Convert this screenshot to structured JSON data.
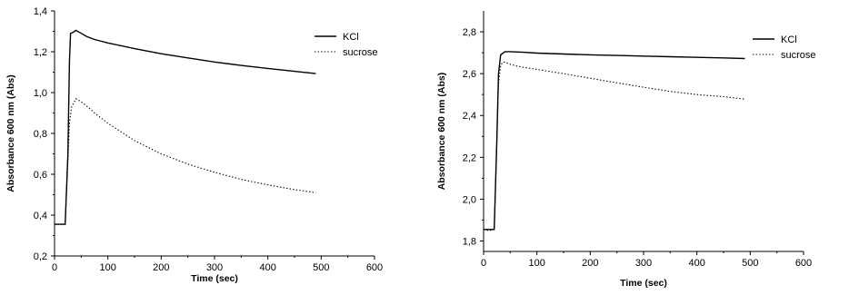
{
  "chart_data": [
    {
      "type": "line",
      "xlabel": "Time (sec)",
      "ylabel": "Absorbance 600 nm (Abs)",
      "xlim": [
        0,
        600
      ],
      "ylim": [
        0.2,
        1.4
      ],
      "xticks": [
        0,
        100,
        200,
        300,
        400,
        500,
        600
      ],
      "xtick_labels": [
        "0",
        "100",
        "200",
        "300",
        "400",
        "500",
        "600"
      ],
      "yticks": [
        0.2,
        0.4,
        0.6,
        0.8,
        1.0,
        1.2,
        1.4
      ],
      "ytick_labels": [
        "0,2",
        "0,4",
        "0,6",
        "0,8",
        "1,0",
        "1,2",
        "1,4"
      ],
      "grid": false,
      "legend_position": "top-right",
      "series": [
        {
          "name": "KCl",
          "style": "solid",
          "x": [
            0,
            10,
            20,
            25,
            28,
            30,
            35,
            40,
            50,
            60,
            75,
            100,
            150,
            200,
            250,
            300,
            350,
            400,
            450,
            490
          ],
          "y": [
            0.355,
            0.355,
            0.355,
            0.7,
            1.15,
            1.29,
            1.295,
            1.305,
            1.29,
            1.275,
            1.26,
            1.243,
            1.215,
            1.19,
            1.17,
            1.15,
            1.133,
            1.118,
            1.104,
            1.093
          ]
        },
        {
          "name": "sucrose",
          "style": "dotted",
          "x": [
            0,
            10,
            20,
            24,
            28,
            32,
            36,
            40,
            50,
            60,
            75,
            100,
            150,
            200,
            250,
            300,
            350,
            400,
            450,
            490
          ],
          "y": [
            0.355,
            0.355,
            0.355,
            0.6,
            0.85,
            0.93,
            0.95,
            0.97,
            0.955,
            0.935,
            0.9,
            0.85,
            0.765,
            0.7,
            0.65,
            0.61,
            0.575,
            0.548,
            0.525,
            0.51
          ]
        }
      ]
    },
    {
      "type": "line",
      "xlabel": "Time (sec)",
      "ylabel": "Absorbance 600 nm (Abs)",
      "xlim": [
        0,
        600
      ],
      "ylim": [
        1.75,
        2.9
      ],
      "xticks": [
        0,
        100,
        200,
        300,
        400,
        500,
        600
      ],
      "xtick_labels": [
        "0",
        "100",
        "200",
        "300",
        "400",
        "500",
        "600"
      ],
      "yticks": [
        1.8,
        2.0,
        2.2,
        2.4,
        2.6,
        2.8
      ],
      "ytick_labels": [
        "1,8",
        "2,0",
        "2,2",
        "2,4",
        "2,6",
        "2,8"
      ],
      "grid": false,
      "legend_position": "top-right",
      "series": [
        {
          "name": "KCl",
          "style": "solid",
          "x": [
            0,
            10,
            20,
            25,
            28,
            32,
            40,
            50,
            75,
            100,
            150,
            200,
            250,
            300,
            350,
            400,
            450,
            490
          ],
          "y": [
            1.855,
            1.855,
            1.855,
            2.3,
            2.6,
            2.69,
            2.705,
            2.705,
            2.702,
            2.698,
            2.694,
            2.69,
            2.687,
            2.684,
            2.681,
            2.678,
            2.675,
            2.672
          ]
        },
        {
          "name": "sucrose",
          "style": "dotted",
          "x": [
            0,
            10,
            20,
            24,
            28,
            32,
            36,
            40,
            50,
            60,
            75,
            100,
            150,
            200,
            250,
            300,
            350,
            400,
            450,
            490
          ],
          "y": [
            1.855,
            1.85,
            1.855,
            2.2,
            2.55,
            2.64,
            2.655,
            2.655,
            2.645,
            2.638,
            2.63,
            2.62,
            2.6,
            2.578,
            2.556,
            2.535,
            2.515,
            2.5,
            2.49,
            2.478
          ]
        }
      ]
    }
  ]
}
